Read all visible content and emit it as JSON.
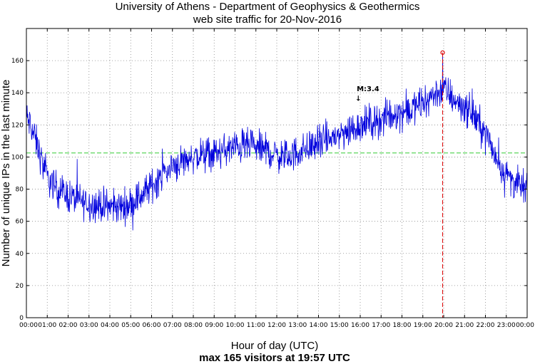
{
  "chart_data": {
    "type": "line",
    "title_lines": [
      "University of Athens - Department of Geophysics & Geothermics",
      "web site traffic for 20-Nov-2016"
    ],
    "xlabel": "Hour of day (UTC)",
    "ylabel": "Number of unique IPs in the last minute",
    "footer": "max 165 visitors at 19:57 UTC",
    "xlim": [
      0,
      24
    ],
    "ylim": [
      0,
      180
    ],
    "x_ticks": [
      0,
      1,
      2,
      3,
      4,
      5,
      6,
      7,
      8,
      9,
      10,
      11,
      12,
      13,
      14,
      15,
      16,
      17,
      18,
      19,
      20,
      21,
      22,
      23,
      24
    ],
    "x_tick_labels": [
      "00:00",
      "01:00",
      "02:00",
      "03:00",
      "04:00",
      "05:00",
      "06:00",
      "07:00",
      "08:00",
      "09:00",
      "10:00",
      "11:00",
      "12:00",
      "13:00",
      "14:00",
      "15:00",
      "16:00",
      "17:00",
      "18:00",
      "19:00",
      "20:00",
      "21:00",
      "22:00",
      "23:00",
      "00:00"
    ],
    "y_ticks": [
      0,
      20,
      40,
      60,
      80,
      100,
      120,
      140,
      160
    ],
    "y_tick_labels": [
      "0",
      "20",
      "40",
      "60",
      "80",
      "100",
      "120",
      "140",
      "160"
    ],
    "grid": true,
    "mean_line": {
      "value": 102.5,
      "color": "#33cc33"
    },
    "max_point": {
      "hour": 19.95,
      "value": 165,
      "color": "#dd0000"
    },
    "event": {
      "hour": 15.9,
      "label": "M:3.4",
      "arrow": "↓"
    },
    "series": [
      {
        "name": "visitors",
        "color": "#0000dd",
        "trend_hours": [
          0,
          0.25,
          0.5,
          0.75,
          1,
          1.5,
          2,
          2.5,
          3,
          3.5,
          4,
          4.5,
          5,
          5.5,
          6,
          6.5,
          7,
          7.5,
          8,
          8.5,
          9,
          9.5,
          10,
          10.5,
          11,
          11.5,
          12,
          12.5,
          13,
          13.5,
          14,
          14.5,
          15,
          15.5,
          16,
          16.5,
          17,
          17.5,
          18,
          18.5,
          19,
          19.5,
          20,
          20.5,
          21,
          21.5,
          22,
          22.5,
          23,
          23.5,
          24
        ],
        "trend_values": [
          125,
          118,
          108,
          97,
          87,
          80,
          76,
          73,
          71,
          70,
          69,
          69,
          71,
          76,
          82,
          89,
          94,
          98,
          100,
          101,
          102,
          104,
          106,
          107,
          106,
          104,
          101,
          100,
          103,
          106,
          109,
          111,
          114,
          117,
          120,
          122,
          123,
          126,
          128,
          130,
          133,
          139,
          142,
          136,
          131,
          125,
          115,
          100,
          89,
          83,
          80
        ],
        "noise_amplitude": 8
      }
    ]
  }
}
